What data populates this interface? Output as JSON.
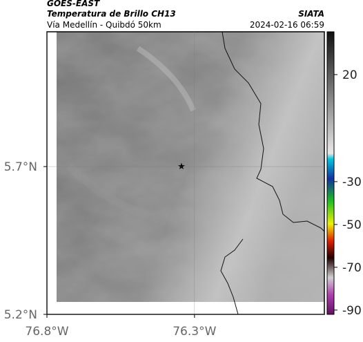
{
  "header": {
    "satellite": "GOES-EAST",
    "product": "Temperatura de Brillo CH13",
    "source": "SIATA",
    "region": "Vía Medellín - Quibdó 50km",
    "datetime": "2024-02-16 06:59"
  },
  "map": {
    "lonlim": [
      -76.8,
      -75.86
    ],
    "latlim": [
      5.2,
      6.156
    ],
    "lonticks": [
      {
        "value": -76.8,
        "label": "76.8°W"
      },
      {
        "value": -76.3,
        "label": "76.3°W"
      }
    ],
    "latticks": [
      {
        "value": 5.2,
        "label": "5.2°N"
      },
      {
        "value": 5.7,
        "label": "5.7°N"
      }
    ],
    "grid": true
  },
  "colorbar": {
    "lim": [
      -92,
      40
    ],
    "ticks": [
      20,
      -30,
      -50,
      -70,
      -90
    ]
  }
}
